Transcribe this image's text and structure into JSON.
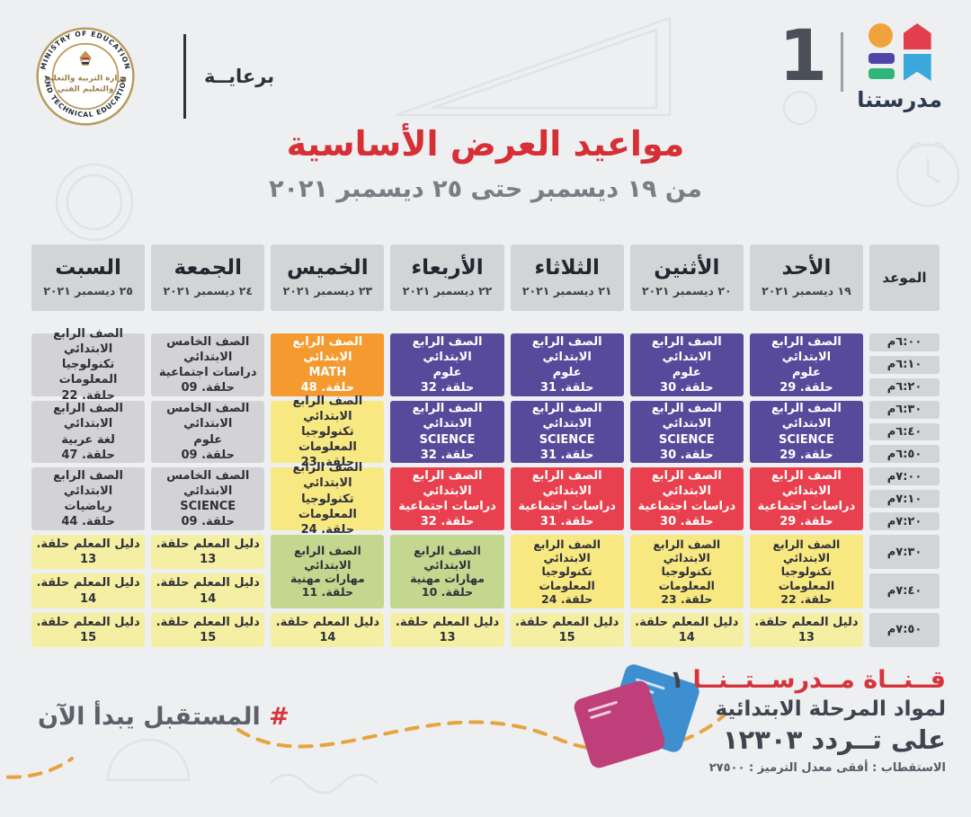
{
  "brand": {
    "number": "1",
    "wordmark": "مدرستنا"
  },
  "sponsor": {
    "label": "برعايــة",
    "seal_arc_top": "MINISTRY OF EDUCATION",
    "seal_arc_bottom": "AND TECHNICAL EDUCATION",
    "seal_center1": "وزارة التربية والتعليم",
    "seal_center2": "والتعليم الفني"
  },
  "title": {
    "text": "مواعيد العرض الأساسية",
    "subtitle": "من ١٩ ديسمبر حتى ٢٥ ديسمبر ٢٠٢١"
  },
  "colors": {
    "purple": "#584a9b",
    "red": "#e8404e",
    "orange": "#f49a2f",
    "yellow": "#f8e882",
    "pale": "#f5efa3",
    "green": "#c4d78f",
    "gray": "#d3d3d5",
    "accent_red": "#d62f35"
  },
  "table": {
    "time_header": "الموعد",
    "times": [
      "٦:٠٠م",
      "٦:١٠م",
      "٦:٢٠م",
      "٦:٣٠م",
      "٦:٤٠م",
      "٦:٥٠م",
      "٧:٠٠م",
      "٧:١٠م",
      "٧:٢٠م",
      "٧:٣٠م",
      "٧:٤٠م",
      "٧:٥٠م"
    ],
    "columns": [
      {
        "day": "الأحد",
        "date": "١٩ ديسمبر ٢٠٢١",
        "cells": [
          {
            "span": 3,
            "color": "purple",
            "lines": [
              "الصف الرابع الابتدائي",
              "علوم",
              "حلقة. 29"
            ]
          },
          {
            "span": 3,
            "color": "purple",
            "lines": [
              "الصف الرابع الابتدائي",
              "SCIENCE",
              "حلقة. 29"
            ]
          },
          {
            "span": 3,
            "color": "red",
            "lines": [
              "الصف الرابع الابتدائي",
              "دراسات اجتماعية",
              "حلقة. 29"
            ]
          },
          {
            "span": 2,
            "color": "yellow",
            "lines": [
              "الصف الرابع الابتدائي",
              "تكنولوجيا المعلومات",
              "حلقة. 22"
            ]
          },
          {
            "span": 1,
            "color": "pale",
            "lines": [
              "دليل المعلم حلقة. 13"
            ]
          }
        ]
      },
      {
        "day": "الأثنين",
        "date": "٢٠ ديسمبر ٢٠٢١",
        "cells": [
          {
            "span": 3,
            "color": "purple",
            "lines": [
              "الصف الرابع الابتدائي",
              "علوم",
              "حلقة. 30"
            ]
          },
          {
            "span": 3,
            "color": "purple",
            "lines": [
              "الصف الرابع الابتدائي",
              "SCIENCE",
              "حلقة. 30"
            ]
          },
          {
            "span": 3,
            "color": "red",
            "lines": [
              "الصف الرابع الابتدائي",
              "دراسات اجتماعية",
              "حلقة. 30"
            ]
          },
          {
            "span": 2,
            "color": "yellow",
            "lines": [
              "الصف الرابع الابتدائي",
              "تكنولوجيا المعلومات",
              "حلقة. 23"
            ]
          },
          {
            "span": 1,
            "color": "pale",
            "lines": [
              "دليل المعلم حلقة. 14"
            ]
          }
        ]
      },
      {
        "day": "الثلاثاء",
        "date": "٢١ ديسمبر ٢٠٢١",
        "cells": [
          {
            "span": 3,
            "color": "purple",
            "lines": [
              "الصف الرابع الابتدائي",
              "علوم",
              "حلقة. 31"
            ]
          },
          {
            "span": 3,
            "color": "purple",
            "lines": [
              "الصف الرابع الابتدائي",
              "SCIENCE",
              "حلقة. 31"
            ]
          },
          {
            "span": 3,
            "color": "red",
            "lines": [
              "الصف الرابع الابتدائي",
              "دراسات اجتماعية",
              "حلقة. 31"
            ]
          },
          {
            "span": 2,
            "color": "yellow",
            "lines": [
              "الصف الرابع الابتدائي",
              "تكنولوجيا المعلومات",
              "حلقة. 24"
            ]
          },
          {
            "span": 1,
            "color": "pale",
            "lines": [
              "دليل المعلم حلقة. 15"
            ]
          }
        ]
      },
      {
        "day": "الأربعاء",
        "date": "٢٢ ديسمبر ٢٠٢١",
        "cells": [
          {
            "span": 3,
            "color": "purple",
            "lines": [
              "الصف الرابع الابتدائي",
              "علوم",
              "حلقة. 32"
            ]
          },
          {
            "span": 3,
            "color": "purple",
            "lines": [
              "الصف الرابع الابتدائي",
              "SCIENCE",
              "حلقة. 32"
            ]
          },
          {
            "span": 3,
            "color": "red",
            "lines": [
              "الصف الرابع الابتدائي",
              "دراسات اجتماعية",
              "حلقة. 32"
            ]
          },
          {
            "span": 2,
            "color": "green",
            "lines": [
              "الصف الرابع الابتدائي",
              "مهارات مهنية",
              "حلقة. 10"
            ]
          },
          {
            "span": 1,
            "color": "pale",
            "lines": [
              "دليل المعلم حلقة. 13"
            ]
          }
        ]
      },
      {
        "day": "الخميس",
        "date": "٢٣ ديسمبر ٢٠٢١",
        "cells": [
          {
            "span": 3,
            "color": "orange",
            "lines": [
              "الصف الرابع الابتدائي",
              "MATH",
              "حلقة. 48"
            ]
          },
          {
            "span": 3,
            "color": "yellow",
            "lines": [
              "الصف الرابع الابتدائي",
              "تكنولوجيا المعلومات",
              "حلقة. 23"
            ]
          },
          {
            "span": 3,
            "color": "yellow",
            "lines": [
              "الصف الرابع الابتدائي",
              "تكنولوجيا المعلومات",
              "حلقة. 24"
            ]
          },
          {
            "span": 2,
            "color": "green",
            "lines": [
              "الصف الرابع الابتدائي",
              "مهارات مهنية",
              "حلقة. 11"
            ]
          },
          {
            "span": 1,
            "color": "pale",
            "lines": [
              "دليل المعلم حلقة. 14"
            ]
          }
        ]
      },
      {
        "day": "الجمعة",
        "date": "٢٤ ديسمبر ٢٠٢١",
        "cells": [
          {
            "span": 3,
            "color": "gray",
            "lines": [
              "الصف الخامس الابتدائي",
              "دراسات اجتماعية",
              "حلقة. 09"
            ]
          },
          {
            "span": 3,
            "color": "gray",
            "lines": [
              "الصف الخامس الابتدائي",
              "علوم",
              "حلقة. 09"
            ]
          },
          {
            "span": 3,
            "color": "gray",
            "lines": [
              "الصف الخامس الابتدائي",
              "SCIENCE",
              "حلقة. 09"
            ]
          },
          {
            "span": 1,
            "color": "pale",
            "lines": [
              "دليل المعلم حلقة. 13"
            ]
          },
          {
            "span": 1,
            "color": "pale",
            "lines": [
              "دليل المعلم حلقة. 14"
            ]
          },
          {
            "span": 1,
            "color": "pale",
            "lines": [
              "دليل المعلم حلقة. 15"
            ]
          }
        ]
      },
      {
        "day": "السبت",
        "date": "٢٥ ديسمبر ٢٠٢١",
        "cells": [
          {
            "span": 3,
            "color": "gray",
            "lines": [
              "الصف الرابع الابتدائي",
              "تكنولوجيا المعلومات",
              "حلقة. 22"
            ]
          },
          {
            "span": 3,
            "color": "gray",
            "lines": [
              "الصف الرابع الابتدائي",
              "لغة عربية",
              "حلقة. 47"
            ]
          },
          {
            "span": 3,
            "color": "gray",
            "lines": [
              "الصف الرابع الابتدائي",
              "رياضيات",
              "حلقة. 44"
            ]
          },
          {
            "span": 1,
            "color": "pale",
            "lines": [
              "دليل المعلم حلقة. 13"
            ]
          },
          {
            "span": 1,
            "color": "pale",
            "lines": [
              "دليل المعلم حلقة. 14"
            ]
          },
          {
            "span": 1,
            "color": "pale",
            "lines": [
              "دليل المعلم حلقة. 15"
            ]
          }
        ]
      }
    ]
  },
  "footer": {
    "hashtag_symbol": "#",
    "hashtag_text": " المستقبل يبدأ الآن",
    "channel_name": "قــنــاة مــدرســتــنــا ",
    "channel_number": "١",
    "line2": "لمواد المرحلة الابتدائية",
    "line3": "على تــردد ١٢٣٠٣",
    "line4": "الاستقطاب : أفقى   معدل الترميز : ٢٧٥٠٠"
  }
}
